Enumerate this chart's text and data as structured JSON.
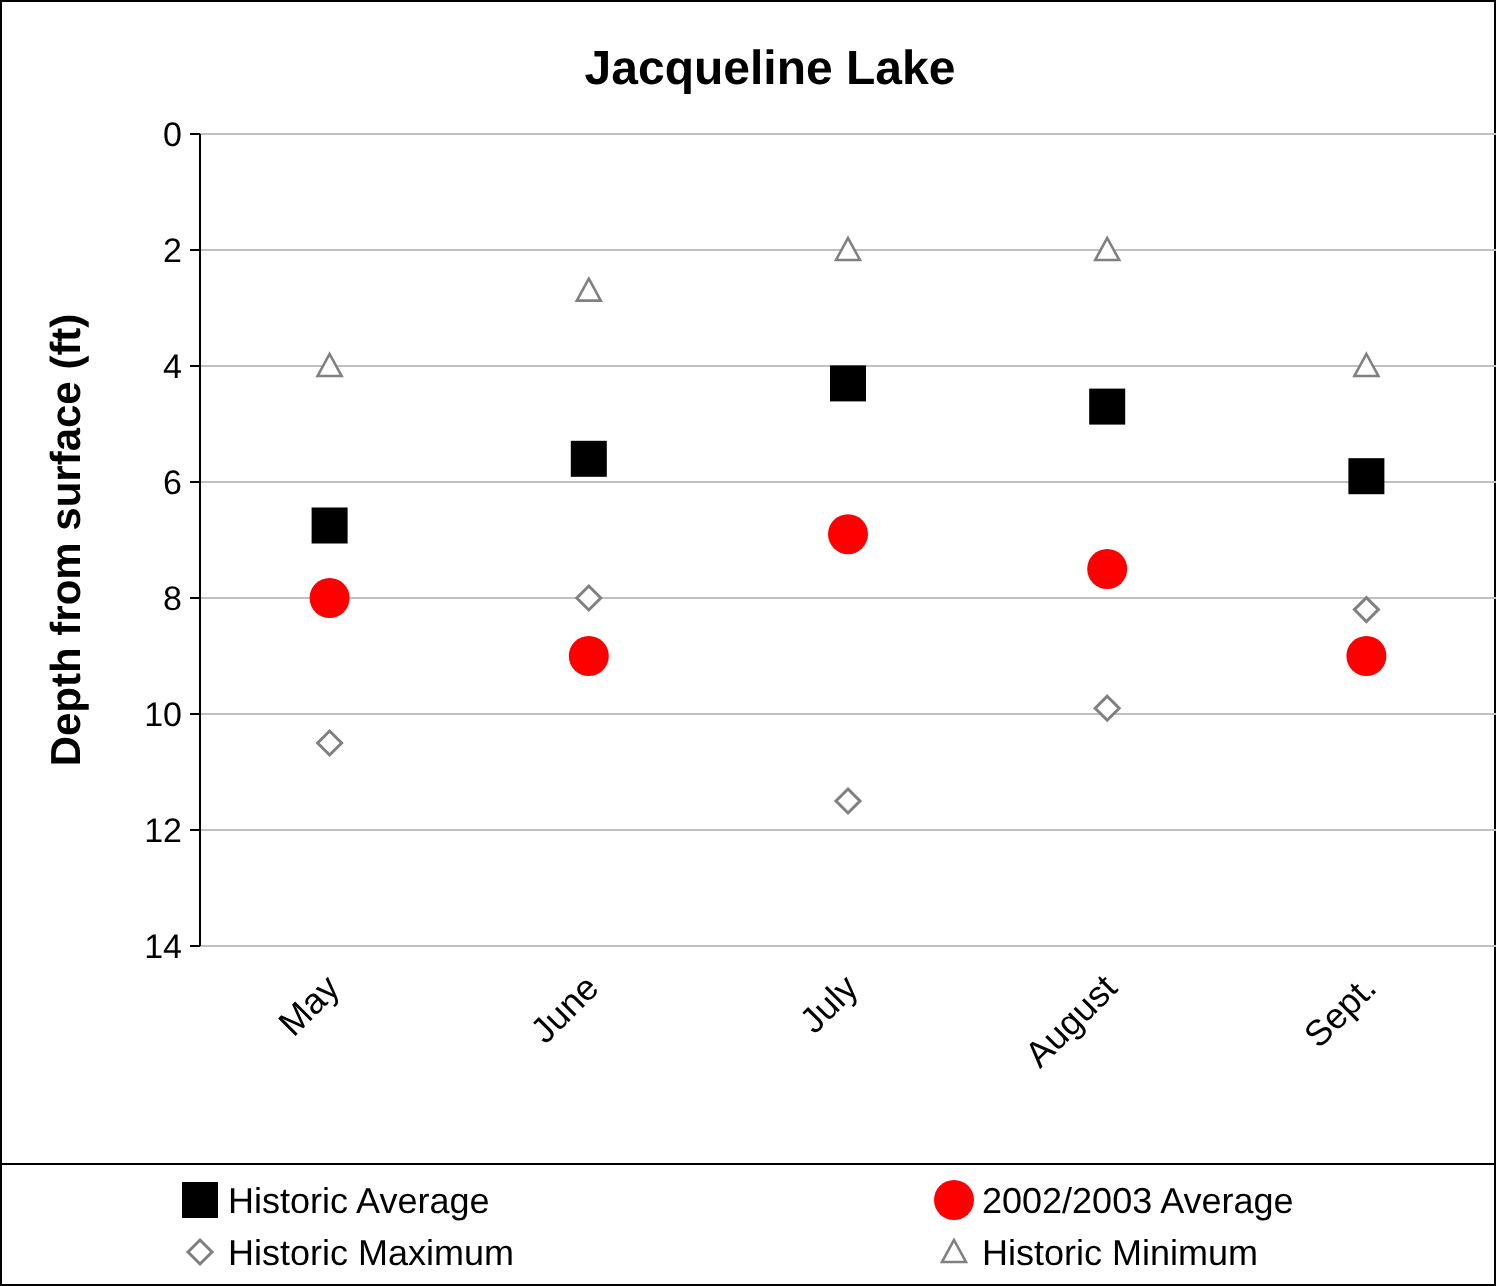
{
  "chart_data": {
    "type": "scatter",
    "title": "Jacqueline Lake",
    "ylabel": "Depth from surface (ft)",
    "categories": [
      "May",
      "June",
      "July",
      "August",
      "Sept."
    ],
    "ylim": [
      14,
      0
    ],
    "yticks": [
      0,
      2,
      4,
      6,
      8,
      10,
      12,
      14
    ],
    "grid": "y",
    "legend": "bottom",
    "series": [
      {
        "name": "Historic Average",
        "color": "#000000",
        "marker": "square",
        "values": [
          6.75,
          5.6,
          4.3,
          4.7,
          5.9
        ]
      },
      {
        "name": "2002/2003 Average",
        "color": "#ff0000",
        "marker": "circle",
        "values": [
          8,
          9,
          6.9,
          7.5,
          9
        ]
      },
      {
        "name": "Historic Maximum",
        "color": "#808080",
        "marker": "diamond",
        "values": [
          10.5,
          8,
          11.5,
          9.9,
          8.2
        ]
      },
      {
        "name": "Historic Minimum",
        "color": "#808080",
        "marker": "triangle",
        "values": [
          4,
          2.7,
          2,
          2,
          4
        ]
      }
    ]
  }
}
